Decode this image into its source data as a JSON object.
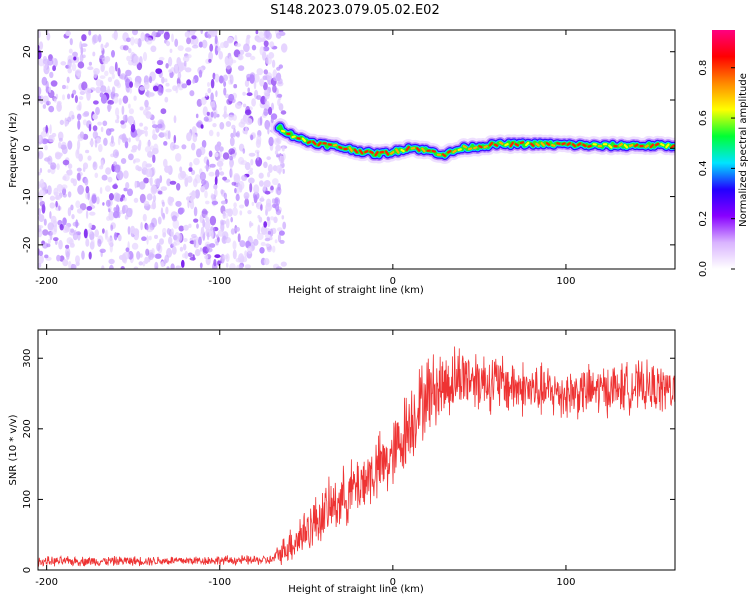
{
  "title": "S148.2023.079.05.02.E02",
  "chart_data": [
    {
      "type": "heatmap",
      "xlabel": "Height of straight line (km)",
      "ylabel": "Frequency (Hz)",
      "xlim": [
        -205,
        163
      ],
      "ylim": [
        -25,
        24.5
      ],
      "xticks": [
        "-200",
        "-100",
        "0",
        "100"
      ],
      "yticks": [
        "20",
        "10",
        "0",
        "-10",
        "-20"
      ],
      "grid": false,
      "noise_region_x": [
        -205,
        -65
      ],
      "signal_track": {
        "x": [
          -66,
          -60,
          -50,
          -40,
          -30,
          -20,
          -10,
          0,
          10,
          20,
          30,
          40,
          50,
          60,
          80,
          100,
          120,
          140,
          163
        ],
        "frequency": [
          4.5,
          3.0,
          1.5,
          0.8,
          0.2,
          -0.5,
          -1.2,
          -0.8,
          0.2,
          -0.5,
          -1.3,
          0.0,
          0.4,
          0.8,
          0.9,
          0.8,
          0.5,
          0.6,
          0.5
        ]
      },
      "colorbar": {
        "label": "Normalized spectral amplitude",
        "range": [
          0,
          0.95
        ],
        "ticks": [
          "0.0",
          "0.2",
          "0.4",
          "0.6",
          "0.8"
        ],
        "colors": [
          "#ffffff",
          "#d9b3ff",
          "#8800ff",
          "#2200ff",
          "#00e5ff",
          "#00ff33",
          "#ffff00",
          "#ff8800",
          "#ff0000",
          "#ff0080"
        ]
      }
    },
    {
      "type": "line",
      "xlabel": "Height of straight line (km)",
      "ylabel": "SNR (10 * v/v)",
      "xlim": [
        -205,
        163
      ],
      "ylim": [
        0,
        340
      ],
      "xticks": [
        "-200",
        "-100",
        "0",
        "100"
      ],
      "yticks": [
        "300",
        "200",
        "100",
        "0"
      ],
      "grid": false,
      "color": "#ee3333",
      "trend": {
        "x": [
          -205,
          -70,
          -55,
          -40,
          -20,
          0,
          10,
          20,
          40,
          60,
          80,
          100,
          120,
          140,
          163
        ],
        "y": [
          12,
          14,
          45,
          80,
          120,
          160,
          210,
          250,
          275,
          265,
          255,
          250,
          255,
          260,
          255
        ]
      },
      "noise_amplitude": {
        "x": [
          -205,
          -70,
          -55,
          0,
          10,
          40,
          80,
          163
        ],
        "y": [
          8,
          8,
          40,
          60,
          70,
          55,
          45,
          40
        ]
      }
    }
  ]
}
